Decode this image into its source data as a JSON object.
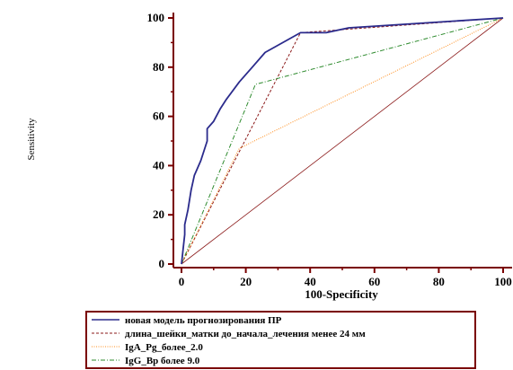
{
  "chart_data": {
    "type": "line",
    "xlabel": "100-Specificity",
    "ylabel": "Sensitivity",
    "xlim": [
      0,
      100
    ],
    "ylim": [
      0,
      100
    ],
    "x_ticks": [
      "0",
      "20",
      "40",
      "60",
      "80",
      "100"
    ],
    "y_ticks": [
      "0",
      "20",
      "40",
      "60",
      "80",
      "100"
    ],
    "grid": false,
    "legend_position": "bottom",
    "series": [
      {
        "name": "новая модель прогнозирования ПР",
        "color": "#2b2b8c",
        "style": "solid",
        "points": [
          [
            0,
            0
          ],
          [
            1,
            12
          ],
          [
            1,
            16
          ],
          [
            2,
            22
          ],
          [
            3,
            30
          ],
          [
            4,
            36
          ],
          [
            6,
            42
          ],
          [
            8,
            50
          ],
          [
            8,
            55
          ],
          [
            10,
            58
          ],
          [
            12,
            63
          ],
          [
            14,
            67
          ],
          [
            18,
            74
          ],
          [
            22,
            80
          ],
          [
            26,
            86
          ],
          [
            37,
            94
          ],
          [
            45,
            94
          ],
          [
            52,
            96
          ],
          [
            100,
            100
          ]
        ]
      },
      {
        "name": "длина_шейки_матки до_начала_лечения менее 24 мм",
        "color": "#8b1a1a",
        "style": "dash",
        "points": [
          [
            0,
            0
          ],
          [
            37,
            94
          ],
          [
            100,
            100
          ]
        ]
      },
      {
        "name": "IgA_Pg_более_2.0",
        "color": "#ff8c1a",
        "style": "dot",
        "points": [
          [
            0,
            0
          ],
          [
            18,
            47
          ],
          [
            100,
            100
          ]
        ]
      },
      {
        "name": "IgG_Bp более 9.0",
        "color": "#2e8b2e",
        "style": "dashdot",
        "points": [
          [
            0,
            0
          ],
          [
            23,
            73
          ],
          [
            100,
            100
          ]
        ]
      }
    ],
    "reference_line": {
      "color": "#8b1a1a",
      "points": [
        [
          0,
          0
        ],
        [
          100,
          100
        ]
      ]
    }
  }
}
